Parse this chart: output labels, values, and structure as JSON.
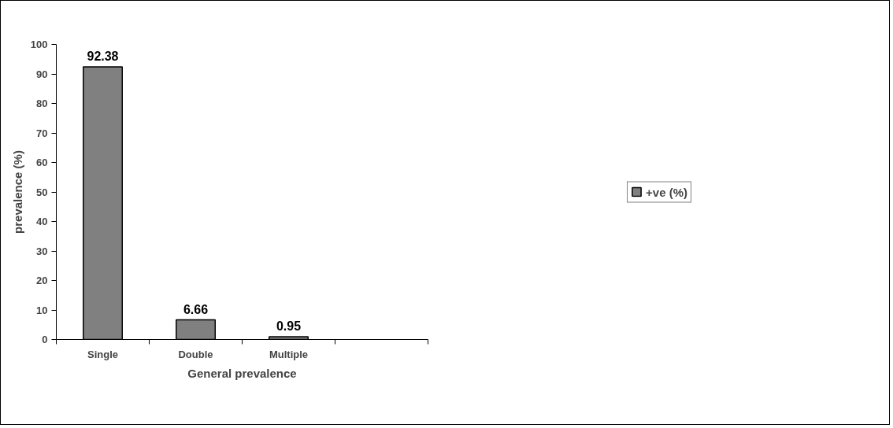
{
  "chart_data": {
    "type": "bar",
    "xlabel": "General prevalence",
    "ylabel": "prevalence (%)",
    "categories": [
      "Single",
      "Double",
      "Multiple",
      null
    ],
    "series": [
      {
        "name": "+ve (%)",
        "color": "#808080",
        "values": [
          92.38,
          6.66,
          0.95,
          null
        ]
      }
    ],
    "ylim": [
      0,
      100
    ],
    "yticks": [
      0,
      10,
      20,
      30,
      40,
      50,
      60,
      70,
      80,
      90,
      100
    ],
    "data_labels": true,
    "legend": "right",
    "grid": false
  }
}
